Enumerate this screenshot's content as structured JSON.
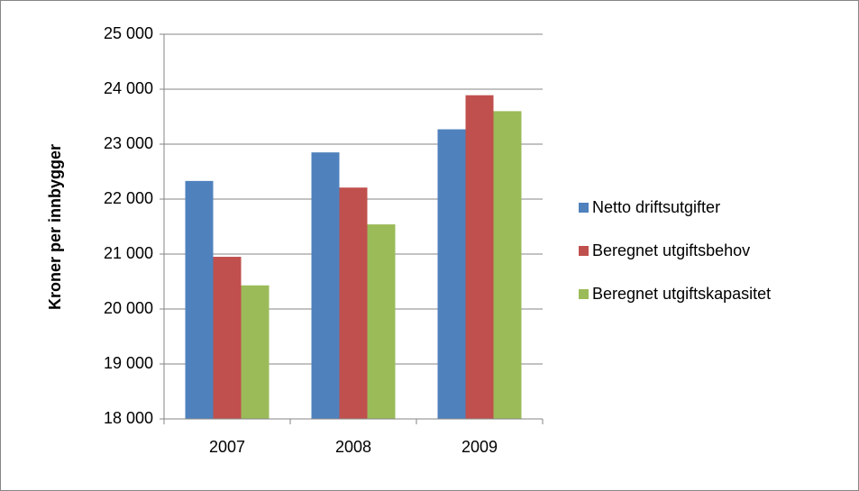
{
  "chart_data": {
    "type": "bar",
    "y_label": "Kroner per innbygger",
    "categories": [
      "2007",
      "2008",
      "2009"
    ],
    "series": [
      {
        "name": "Netto driftsutgifter",
        "color": "#4f81bd",
        "values": [
          22330,
          22850,
          23270
        ]
      },
      {
        "name": "Beregnet utgiftsbehov",
        "color": "#c0504d",
        "values": [
          20950,
          22210,
          23890
        ]
      },
      {
        "name": "Beregnet utgiftskapasitet",
        "color": "#9bbb59",
        "values": [
          20430,
          21540,
          23600
        ]
      }
    ],
    "ylim": [
      18000,
      25000
    ],
    "yticks": [
      {
        "value": 18000,
        "label": "18 000"
      },
      {
        "value": 19000,
        "label": "19 000"
      },
      {
        "value": 20000,
        "label": "20 000"
      },
      {
        "value": 21000,
        "label": "21 000"
      },
      {
        "value": 22000,
        "label": "22 000"
      },
      {
        "value": 23000,
        "label": "23 000"
      },
      {
        "value": 24000,
        "label": "24 000"
      },
      {
        "value": 25000,
        "label": "25 000"
      }
    ],
    "grid": true,
    "legend": "right"
  }
}
